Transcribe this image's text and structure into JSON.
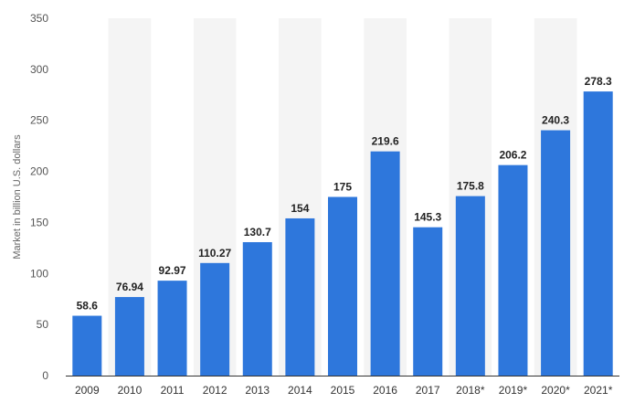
{
  "chart_data": {
    "type": "bar",
    "title": "",
    "xlabel": "",
    "ylabel": "Market in billion U.S. dollars",
    "ylim": [
      0,
      350
    ],
    "yticks": [
      0,
      50,
      100,
      150,
      200,
      250,
      300,
      350
    ],
    "grid": "alternating vertical bands",
    "legend": "none",
    "categories": [
      "2009",
      "2010",
      "2011",
      "2012",
      "2013",
      "2014",
      "2015",
      "2016",
      "2017",
      "2018*",
      "2019*",
      "2020*",
      "2021*"
    ],
    "values": [
      58.6,
      76.94,
      92.97,
      110.27,
      130.7,
      154,
      175,
      219.6,
      145.3,
      175.8,
      206.2,
      240.3,
      278.3
    ],
    "value_labels": [
      "58.6",
      "76.94",
      "92.97",
      "110.27",
      "130.7",
      "154",
      "175",
      "219.6",
      "145.3",
      "175.8",
      "206.2",
      "240.3",
      "278.3"
    ],
    "colors": {
      "bar": "#2e77dc",
      "band": "#f4f4f4",
      "axis": "#333333"
    }
  }
}
